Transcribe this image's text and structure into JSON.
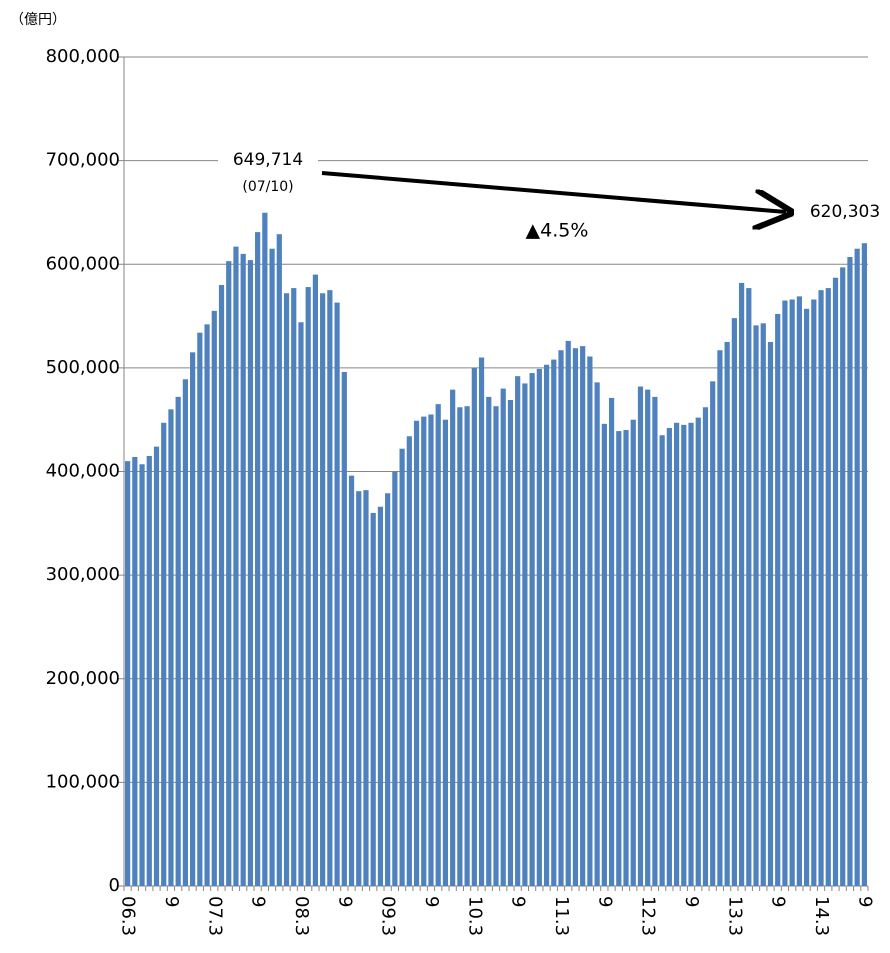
{
  "chart_data": {
    "type": "bar",
    "unit_label": "（億円）",
    "annotations": [
      "649,714",
      "(07/10)",
      "▲4.5%",
      "620,303"
    ],
    "color": "#4f81bd",
    "grid": true,
    "ylim": [
      0,
      800000
    ],
    "yticks": [
      0,
      {
        "value": 100000,
        "label": "100,000"
      },
      {
        "value": 200000,
        "label": "200,000"
      },
      {
        "value": 300000,
        "label": "300,000"
      },
      {
        "value": 400000,
        "label": "400,000"
      },
      {
        "value": 500000,
        "label": "500,000"
      },
      {
        "value": 600000,
        "label": "600,000"
      },
      {
        "value": 700000,
        "label": "700,000"
      },
      {
        "value": 800000,
        "label": "800,000"
      }
    ],
    "categories": [
      "06.3",
      null,
      null,
      null,
      null,
      null,
      "9",
      null,
      null,
      null,
      null,
      null,
      "07.3",
      null,
      null,
      null,
      null,
      null,
      "9",
      null,
      null,
      null,
      null,
      null,
      "08.3",
      null,
      null,
      null,
      null,
      null,
      "9",
      null,
      null,
      null,
      null,
      null,
      "09.3",
      null,
      null,
      null,
      null,
      null,
      "9",
      null,
      null,
      null,
      null,
      null,
      "10.3",
      null,
      null,
      null,
      null,
      null,
      "9",
      null,
      null,
      null,
      null,
      null,
      "11.3",
      null,
      null,
      null,
      null,
      null,
      "9",
      null,
      null,
      null,
      null,
      null,
      "12.3",
      null,
      null,
      null,
      null,
      null,
      "9",
      null,
      null,
      null,
      null,
      null,
      "13.3",
      null,
      null,
      null,
      null,
      null,
      "9",
      null,
      null,
      null,
      null,
      null,
      "14.3",
      null,
      null,
      null,
      null,
      null,
      "9"
    ],
    "values": [
      410000,
      414000,
      407000,
      415000,
      424000,
      447000,
      460000,
      472000,
      489000,
      515000,
      534000,
      542000,
      555000,
      580000,
      603000,
      617000,
      610000,
      604000,
      631000,
      649714,
      615000,
      629000,
      572000,
      577000,
      544000,
      578000,
      590000,
      572000,
      575000,
      563000,
      496000,
      396000,
      381000,
      382000,
      360000,
      366000,
      379000,
      400000,
      422000,
      434000,
      449000,
      453000,
      455000,
      465000,
      450000,
      479000,
      462000,
      463000,
      500000,
      510000,
      472000,
      463000,
      480000,
      469000,
      492000,
      485000,
      495000,
      499000,
      503000,
      508000,
      517000,
      526000,
      519000,
      521000,
      511000,
      486000,
      446000,
      471000,
      439000,
      440000,
      450000,
      482000,
      479000,
      472000,
      435000,
      442000,
      447000,
      445000,
      447000,
      452000,
      462000,
      487000,
      517000,
      525000,
      548000,
      582000,
      577000,
      541000,
      543000,
      525000,
      552000,
      565000,
      566000,
      569000,
      557000,
      566000,
      575000,
      577000,
      587000,
      597000,
      607000,
      615000,
      620303
    ]
  }
}
